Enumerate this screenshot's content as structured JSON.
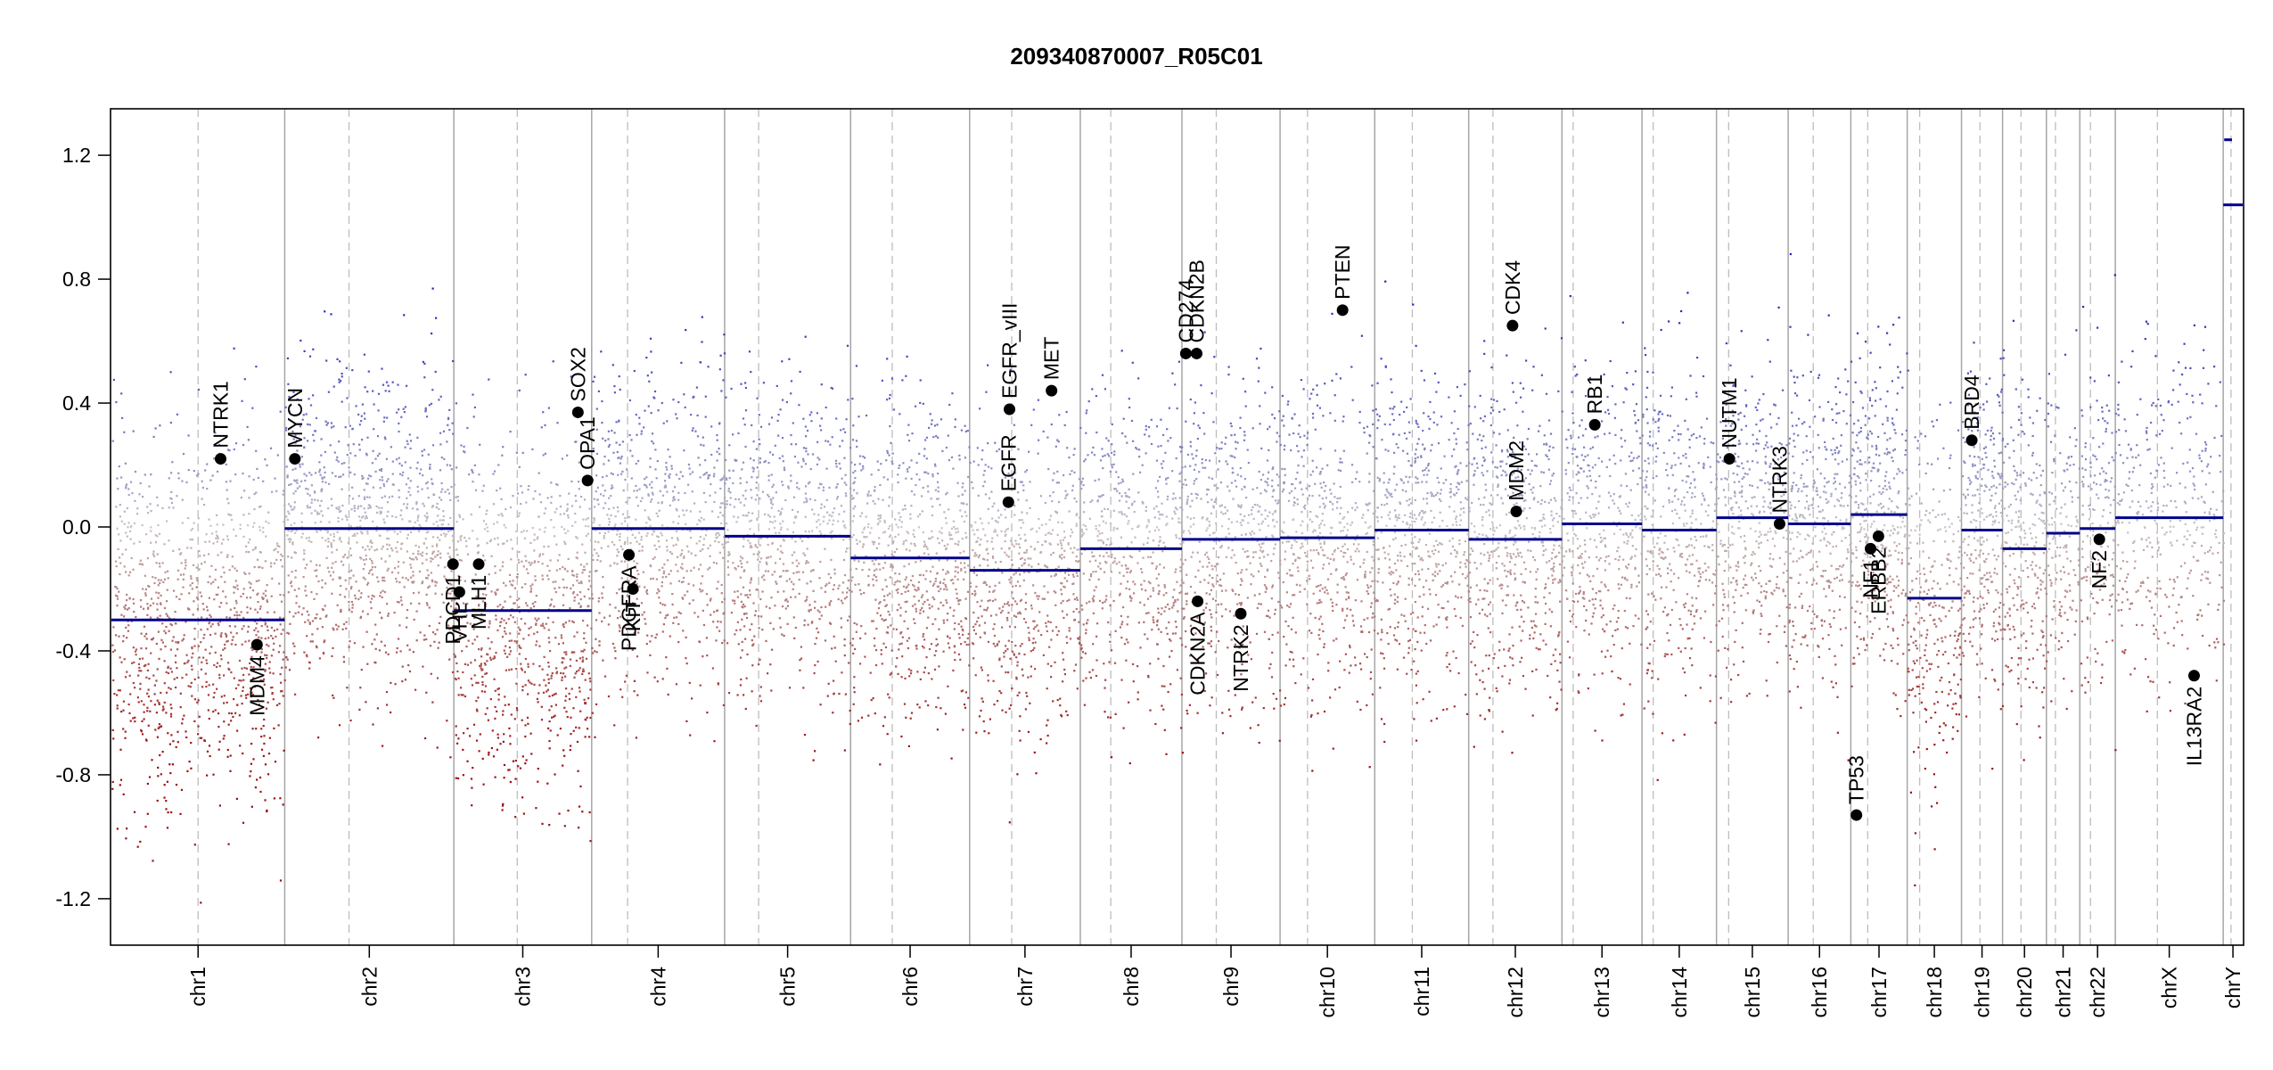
{
  "chart_data": {
    "type": "scatter",
    "title": "209340870007_R05C01",
    "xlabel": "",
    "ylabel": "",
    "ylim": [
      -1.35,
      1.35
    ],
    "yticks": [
      -1.2,
      -0.8,
      -0.4,
      0.0,
      0.4,
      0.8,
      1.2
    ],
    "ytick_labels": [
      "-1.2",
      "-0.8",
      "-0.4",
      "0.0",
      "0.4",
      "0.8",
      "1.2"
    ],
    "colors": {
      "gain": "#1f24b8",
      "loss": "#9b1010",
      "segment": "#00008b",
      "marker": "#000000"
    },
    "chromosomes": [
      {
        "name": "chr1",
        "length": 249,
        "centromere": 0.5,
        "segment": -0.3,
        "density": 1.0
      },
      {
        "name": "chr2",
        "length": 243,
        "centromere": 0.38,
        "segment": -0.005,
        "density": 1.0
      },
      {
        "name": "chr3",
        "length": 198,
        "centromere": 0.46,
        "segment": -0.27,
        "density": 1.0
      },
      {
        "name": "chr4",
        "length": 191,
        "centromere": 0.27,
        "segment": -0.005,
        "density": 0.85
      },
      {
        "name": "chr5",
        "length": 181,
        "centromere": 0.27,
        "segment": -0.03,
        "density": 0.85
      },
      {
        "name": "chr6",
        "length": 171,
        "centromere": 0.35,
        "segment": -0.1,
        "density": 0.95
      },
      {
        "name": "chr7",
        "length": 159,
        "centromere": 0.38,
        "segment": -0.14,
        "density": 0.9
      },
      {
        "name": "chr8",
        "length": 146,
        "centromere": 0.3,
        "segment": -0.07,
        "density": 0.85
      },
      {
        "name": "chr9",
        "length": 141,
        "centromere": 0.35,
        "segment": -0.04,
        "density": 0.85
      },
      {
        "name": "chr10",
        "length": 136,
        "centromere": 0.29,
        "segment": -0.035,
        "density": 0.85
      },
      {
        "name": "chr11",
        "length": 135,
        "centromere": 0.4,
        "segment": -0.01,
        "density": 0.95
      },
      {
        "name": "chr12",
        "length": 134,
        "centromere": 0.26,
        "segment": -0.04,
        "density": 0.95
      },
      {
        "name": "chr13",
        "length": 115,
        "centromere": 0.14,
        "segment": 0.01,
        "density": 0.8
      },
      {
        "name": "chr14",
        "length": 107,
        "centromere": 0.15,
        "segment": -0.01,
        "density": 0.85
      },
      {
        "name": "chr15",
        "length": 103,
        "centromere": 0.17,
        "segment": 0.03,
        "density": 0.85
      },
      {
        "name": "chr16",
        "length": 90,
        "centromere": 0.4,
        "segment": 0.01,
        "density": 0.95
      },
      {
        "name": "chr17",
        "length": 81,
        "centromere": 0.3,
        "segment": 0.04,
        "density": 1.1
      },
      {
        "name": "chr18",
        "length": 78,
        "centromere": 0.23,
        "segment": -0.23,
        "density": 0.85
      },
      {
        "name": "chr19",
        "length": 59,
        "centromere": 0.45,
        "segment": -0.01,
        "density": 1.15
      },
      {
        "name": "chr20",
        "length": 63,
        "centromere": 0.42,
        "segment": -0.07,
        "density": 0.95
      },
      {
        "name": "chr21",
        "length": 48,
        "centromere": 0.27,
        "segment": -0.02,
        "density": 0.7
      },
      {
        "name": "chr22",
        "length": 51,
        "centromere": 0.3,
        "segment": -0.005,
        "density": 0.8
      },
      {
        "name": "chrX",
        "length": 155,
        "centromere": 0.39,
        "segment": 0.03,
        "density": 0.6
      },
      {
        "name": "chrY",
        "length": 28,
        "centromere": 0.4,
        "segment": 1.04,
        "density": 0.0
      }
    ],
    "extra_segments": [
      {
        "chrom": "chrY",
        "start": 0.05,
        "end": 0.45,
        "value": 1.25
      }
    ],
    "genes": [
      {
        "name": "NTRK1",
        "chrom": "chr1",
        "pos": 0.63,
        "value": 0.22,
        "label_side": "above"
      },
      {
        "name": "MDM4",
        "chrom": "chr1",
        "pos": 0.84,
        "value": -0.38,
        "label_side": "below"
      },
      {
        "name": "MYCN",
        "chrom": "chr2",
        "pos": 0.06,
        "value": 0.22,
        "label_side": "above"
      },
      {
        "name": "PDCD1",
        "chrom": "chr2",
        "pos": 0.995,
        "value": -0.12,
        "label_side": "below"
      },
      {
        "name": "VHL",
        "chrom": "chr3",
        "pos": 0.04,
        "value": -0.21,
        "label_side": "below"
      },
      {
        "name": "MLH1",
        "chrom": "chr3",
        "pos": 0.18,
        "value": -0.12,
        "label_side": "below"
      },
      {
        "name": "SOX2",
        "chrom": "chr3",
        "pos": 0.9,
        "value": 0.37,
        "label_side": "above"
      },
      {
        "name": "OPA1",
        "chrom": "chr3",
        "pos": 0.97,
        "value": 0.15,
        "label_side": "above"
      },
      {
        "name": "PDGFRA",
        "chrom": "chr4",
        "pos": 0.28,
        "value": -0.09,
        "label_side": "below"
      },
      {
        "name": "KIT",
        "chrom": "chr4",
        "pos": 0.31,
        "value": -0.2,
        "label_side": "below"
      },
      {
        "name": "EGFR",
        "chrom": "chr7",
        "pos": 0.35,
        "value": 0.08,
        "label_side": "above"
      },
      {
        "name": "EGFR_vIII",
        "chrom": "chr7",
        "pos": 0.36,
        "value": 0.38,
        "label_side": "above"
      },
      {
        "name": "MET",
        "chrom": "chr7",
        "pos": 0.74,
        "value": 0.44,
        "label_side": "above"
      },
      {
        "name": "CD274",
        "chrom": "chr9",
        "pos": 0.04,
        "value": 0.56,
        "label_side": "above"
      },
      {
        "name": "CDKN2B",
        "chrom": "chr9",
        "pos": 0.15,
        "value": 0.56,
        "label_side": "above"
      },
      {
        "name": "CDKN2A",
        "chrom": "chr9",
        "pos": 0.16,
        "value": -0.24,
        "label_side": "below"
      },
      {
        "name": "NTRK2",
        "chrom": "chr9",
        "pos": 0.6,
        "value": -0.28,
        "label_side": "below"
      },
      {
        "name": "PTEN",
        "chrom": "chr10",
        "pos": 0.66,
        "value": 0.7,
        "label_side": "above"
      },
      {
        "name": "CDK4",
        "chrom": "chr12",
        "pos": 0.47,
        "value": 0.65,
        "label_side": "above"
      },
      {
        "name": "MDM2",
        "chrom": "chr12",
        "pos": 0.51,
        "value": 0.05,
        "label_side": "above"
      },
      {
        "name": "RB1",
        "chrom": "chr13",
        "pos": 0.41,
        "value": 0.33,
        "label_side": "above"
      },
      {
        "name": "NUTM1",
        "chrom": "chr15",
        "pos": 0.18,
        "value": 0.22,
        "label_side": "above"
      },
      {
        "name": "NTRK3",
        "chrom": "chr15",
        "pos": 0.88,
        "value": 0.01,
        "label_side": "above"
      },
      {
        "name": "TP53",
        "chrom": "chr17",
        "pos": 0.1,
        "value": -0.93,
        "label_side": "above"
      },
      {
        "name": "NF1",
        "chrom": "chr17",
        "pos": 0.35,
        "value": -0.07,
        "label_side": "below"
      },
      {
        "name": "ERBB2",
        "chrom": "chr17",
        "pos": 0.49,
        "value": -0.03,
        "label_side": "below"
      },
      {
        "name": "BRD4",
        "chrom": "chr19",
        "pos": 0.25,
        "value": 0.28,
        "label_side": "above"
      },
      {
        "name": "NF2",
        "chrom": "chr22",
        "pos": 0.55,
        "value": -0.04,
        "label_side": "below"
      },
      {
        "name": "IL13RA2",
        "chrom": "chrX",
        "pos": 0.73,
        "value": -0.48,
        "label_side": "below"
      }
    ],
    "grid": false,
    "legend": "none"
  }
}
